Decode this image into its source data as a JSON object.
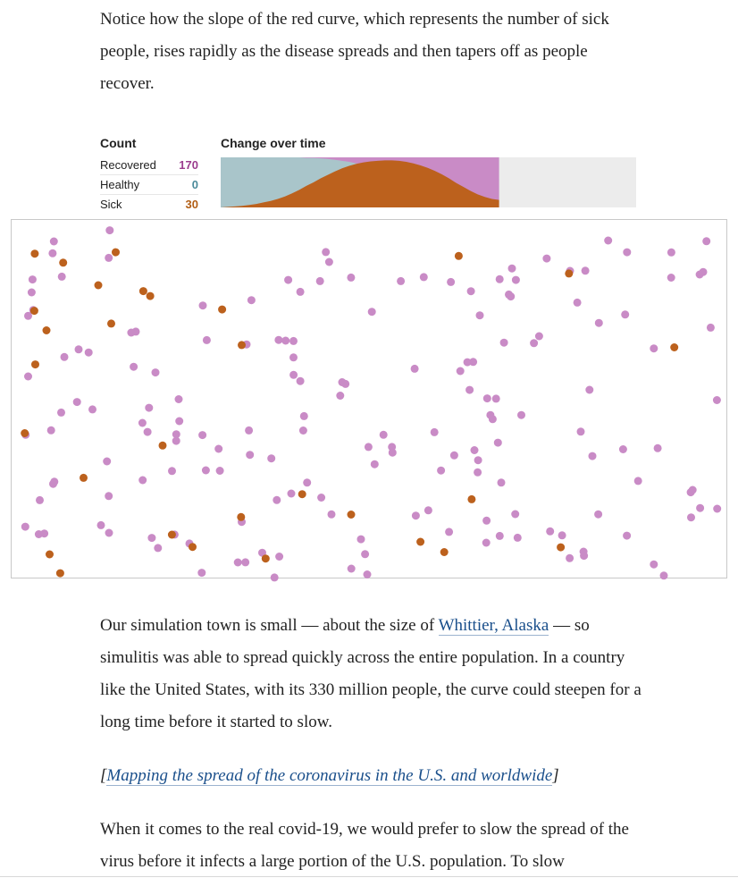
{
  "intro": "Notice how the slope of the red curve, which represents the number of sick people, rises rapidly as the disease spreads and then tapers off as people recover.",
  "colors": {
    "recovered": "#c98bc6",
    "healthy": "#a9c5ca",
    "sick": "#bc611d",
    "empty": "#ececec",
    "recovered_text": "#9b3d8e",
    "healthy_text": "#4a8a9a",
    "sick_text": "#b25e14"
  },
  "legend": {
    "title": "Count",
    "items": [
      {
        "key": "recovered",
        "label": "Recovered",
        "value": "170"
      },
      {
        "key": "healthy",
        "label": "Healthy",
        "value": "0"
      },
      {
        "key": "sick",
        "label": "Sick",
        "value": "30"
      }
    ]
  },
  "chart_data": {
    "type": "area",
    "title": "Change over time",
    "progress": 0.67,
    "sick_series_fraction": [
      0.0,
      0.01,
      0.02,
      0.03,
      0.05,
      0.07,
      0.1,
      0.13,
      0.17,
      0.22,
      0.28,
      0.35,
      0.43,
      0.5,
      0.58,
      0.65,
      0.72,
      0.78,
      0.83,
      0.87,
      0.9,
      0.92,
      0.93,
      0.94,
      0.94,
      0.93,
      0.91,
      0.88,
      0.84,
      0.79,
      0.73,
      0.66,
      0.58,
      0.49,
      0.41,
      0.33,
      0.26,
      0.21,
      0.17,
      0.15
    ],
    "recovered_series_fraction": [
      0.0,
      0.0,
      0.0,
      0.0,
      0.0,
      0.0,
      0.0,
      0.0,
      0.0,
      0.0,
      0.0,
      0.0,
      0.01,
      0.01,
      0.02,
      0.03,
      0.05,
      0.07,
      0.09,
      0.12,
      0.14,
      0.17,
      0.2,
      0.24,
      0.28,
      0.33,
      0.38,
      0.43,
      0.49,
      0.55,
      0.61,
      0.68,
      0.75,
      0.82,
      0.85,
      0.85,
      0.85,
      0.85,
      0.85,
      0.85
    ]
  },
  "population": {
    "recovered": 170,
    "sick": 30,
    "healthy": 0
  },
  "para2": {
    "before": "Our simulation town is small — about the size of ",
    "link": "Whittier, Alaska",
    "after": " — so simulitis was able to spread quickly across the entire population. In a country like the United States, with its 330 million people, the curve could steepen for a long time before it started to slow."
  },
  "related": {
    "open": "[",
    "link": "Mapping the spread of the coronavirus in the U.S. and worldwide",
    "close": "]"
  },
  "para3": "When it comes to the real covid-19, we would prefer to slow the spread of the virus before it infects a large portion of the U.S. population. To slow"
}
